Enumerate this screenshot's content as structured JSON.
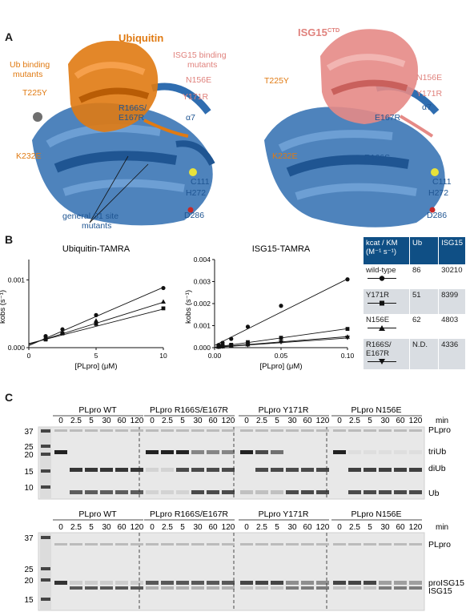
{
  "panels": {
    "a": "A",
    "b": "B",
    "c": "C"
  },
  "panelA": {
    "left": {
      "ubiquitin": "Ubiquitin",
      "isg15_binding": [
        "ISG15 binding",
        "mutants"
      ],
      "ub_binding": [
        "Ub binding",
        "mutants"
      ],
      "n156e": "N156E",
      "y171r": "Y171R",
      "t225y": "T225Y",
      "r166s": [
        "R166S/",
        "E167R"
      ],
      "a7": "α7",
      "k232e": "K232E",
      "c111": "C111",
      "h272": "H272",
      "d286": "D286",
      "s1": [
        "general S1 site",
        "mutants"
      ]
    },
    "right": {
      "isg15": "ISG15",
      "isg15_sup": "CTD",
      "n156e": "N156E",
      "y171r": "Y171R",
      "t225y": "T225Y",
      "a7": "α7",
      "e167r": "E167R",
      "k232e": "K232E",
      "r166s": "R166S",
      "c111": "C111",
      "h272": "H272",
      "d286": "D286"
    }
  },
  "panelB": {
    "legend": {
      "header": [
        "kcat / KM (M⁻¹ s⁻¹)",
        "Ub",
        "ISG15"
      ],
      "rows": [
        {
          "name": "wild-type",
          "ub": "86",
          "isg15": "30210",
          "marker": "circle"
        },
        {
          "name": "Y171R",
          "ub": "51",
          "isg15": "8399",
          "marker": "square"
        },
        {
          "name": "N156E",
          "ub": "62",
          "isg15": "4803",
          "marker": "triangle-up"
        },
        {
          "name": "R166S/\nE167R",
          "ub": "N.D.",
          "isg15": "4336",
          "marker": "triangle-down"
        }
      ]
    }
  },
  "chart_data": [
    {
      "type": "scatter",
      "title": "Ubiquitin-TAMRA",
      "xlabel": "[PLpro] (μM)",
      "ylabel": "kobs (s⁻¹)",
      "xlim": [
        0,
        10
      ],
      "ylim": [
        0,
        0.0013
      ],
      "xticks": [
        "0",
        "5",
        "10"
      ],
      "yticks": [
        "0.000",
        "0.001"
      ],
      "x": [
        1.25,
        2.5,
        5,
        10
      ],
      "series": [
        {
          "name": "wild-type",
          "values": [
            0.00017,
            0.00027,
            0.00048,
            0.00088
          ]
        },
        {
          "name": "Y171R",
          "values": [
            0.00012,
            0.00021,
            0.00035,
            0.00058
          ]
        },
        {
          "name": "N156E",
          "values": [
            0.00014,
            0.00023,
            0.0004,
            0.00068
          ]
        }
      ],
      "fits": [
        {
          "name": "wild-type",
          "slope": 8.6e-05,
          "intercept": 3e-05
        },
        {
          "name": "Y171R",
          "slope": 5.1e-05,
          "intercept": 6e-05
        },
        {
          "name": "N156E",
          "slope": 6.2e-05,
          "intercept": 5e-05
        }
      ]
    },
    {
      "type": "scatter",
      "title": "ISG15-TAMRA",
      "xlabel": "[PLpro] (μM)",
      "ylabel": "kobs (s⁻¹)",
      "xlim": [
        0,
        0.1
      ],
      "ylim": [
        0,
        0.004
      ],
      "xticks": [
        "0.00",
        "0.05",
        "0.10"
      ],
      "yticks": [
        "0.000",
        "0.001",
        "0.002",
        "0.003",
        "0.004"
      ],
      "x": [
        0.003,
        0.006,
        0.0125,
        0.025,
        0.05,
        0.1
      ],
      "series": [
        {
          "name": "wild-type",
          "values": [
            0.00012,
            0.00022,
            0.0004,
            0.00095,
            0.0019,
            0.0031
          ]
        },
        {
          "name": "Y171R",
          "values": [
            5e-05,
            8e-05,
            0.00013,
            0.00025,
            0.00045,
            0.00085
          ]
        },
        {
          "name": "N156E",
          "values": [
            4e-05,
            6e-05,
            0.0001,
            0.00015,
            0.0003,
            0.0005
          ]
        },
        {
          "name": "R166S/E167R",
          "values": [
            3e-05,
            5e-05,
            8e-05,
            0.00012,
            0.00025,
            0.00045
          ]
        }
      ],
      "fits": [
        {
          "name": "wild-type",
          "slope": 0.0302,
          "intercept": 0.0001
        },
        {
          "name": "Y171R",
          "slope": 0.0084,
          "intercept": 2e-05
        },
        {
          "name": "N156E",
          "slope": 0.0048,
          "intercept": 2e-05
        },
        {
          "name": "R166S/E167R",
          "slope": 0.0043,
          "intercept": 1e-05
        }
      ]
    }
  ],
  "panelC": {
    "top": {
      "groups": [
        "PLpro WT",
        "PLpro R166S/E167R",
        "PLpro Y171R",
        "PLpro N156E"
      ],
      "timepoints": [
        "0",
        "2.5",
        "5",
        "30",
        "60",
        "120"
      ],
      "min": "min",
      "markers": [
        "37",
        "25",
        "20",
        "15",
        "10"
      ],
      "bands": [
        "PLpro",
        "triUb",
        "diUb",
        "Ub"
      ]
    },
    "bottom": {
      "groups": [
        "PLpro WT",
        "PLpro R166S/E167R",
        "PLpro Y171R",
        "PLpro N156E"
      ],
      "timepoints": [
        "0",
        "2.5",
        "5",
        "30",
        "60",
        "120"
      ],
      "min": "min",
      "markers": [
        "37",
        "25",
        "20",
        "15"
      ],
      "bands": [
        "PLpro",
        "proISG15",
        "ISG15"
      ]
    }
  }
}
